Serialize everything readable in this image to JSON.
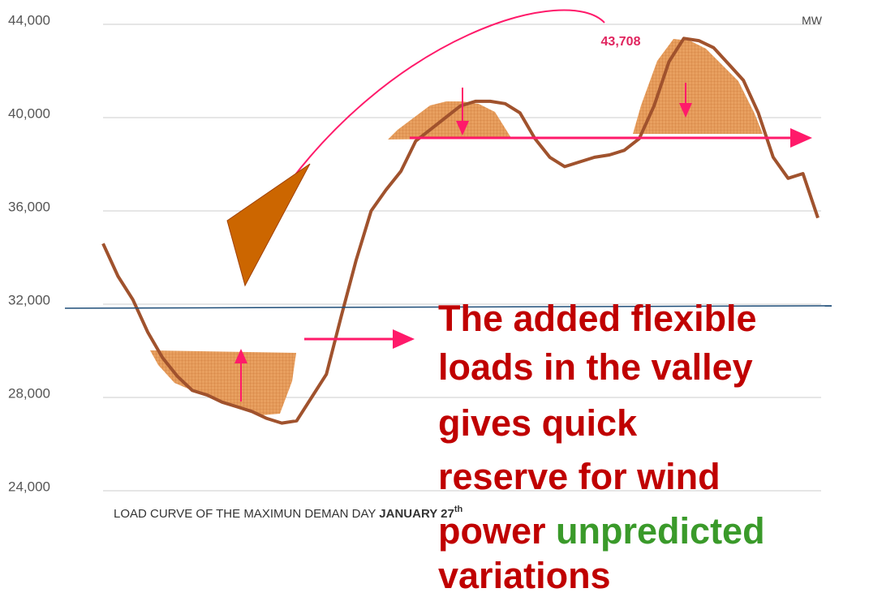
{
  "chart_data": {
    "type": "line",
    "unit": "MW",
    "peak_label": "43,708",
    "caption": [
      "LOAD CURVE OF THE MAXIMUN DEMAN DAY ",
      "JANUARY 27",
      "th"
    ],
    "callout": [
      "The added flexible",
      "loads in the  valley",
      "gives quick",
      "reserve for wind",
      [
        "power",
        "unpredicted"
      ],
      "variations"
    ],
    "categories": [
      null,
      null,
      null,
      null,
      null,
      null,
      null,
      null,
      null,
      null,
      null,
      null,
      null,
      null,
      null,
      null,
      null,
      null,
      null,
      null,
      null,
      null,
      null,
      null,
      null,
      null,
      null,
      null,
      null,
      null,
      null,
      null,
      null,
      null,
      null,
      null,
      null,
      null,
      null,
      null,
      null,
      null,
      null,
      null,
      null,
      null,
      null,
      null,
      null
    ],
    "series": [
      {
        "color": "#a0522d",
        "values": [
          34600,
          33200,
          32200,
          30800,
          29700,
          28900,
          28300,
          28100,
          27800,
          27600,
          27400,
          27100,
          26900,
          27000,
          28000,
          29000,
          31500,
          33900,
          36000,
          36900,
          37700,
          39000,
          39500,
          40000,
          40500,
          40700,
          40700,
          40600,
          40200,
          39100,
          38300,
          37900,
          38100,
          38300,
          38400,
          38600,
          39100,
          40500,
          42400,
          43400,
          43300,
          43000,
          42300,
          41600,
          40200,
          38300,
          37400,
          37600,
          35700
        ]
      }
    ],
    "ylim": [
      24000,
      44000
    ],
    "yticks": [
      {
        "value": 24000,
        "label": "24,000"
      },
      {
        "value": 28000,
        "label": "28,000"
      },
      {
        "value": 32000,
        "label": "32,000"
      },
      {
        "value": 36000,
        "label": "36,000"
      },
      {
        "value": 40000,
        "label": "40,000"
      },
      {
        "value": 44000,
        "label": "44,000"
      }
    ],
    "grid": true
  }
}
